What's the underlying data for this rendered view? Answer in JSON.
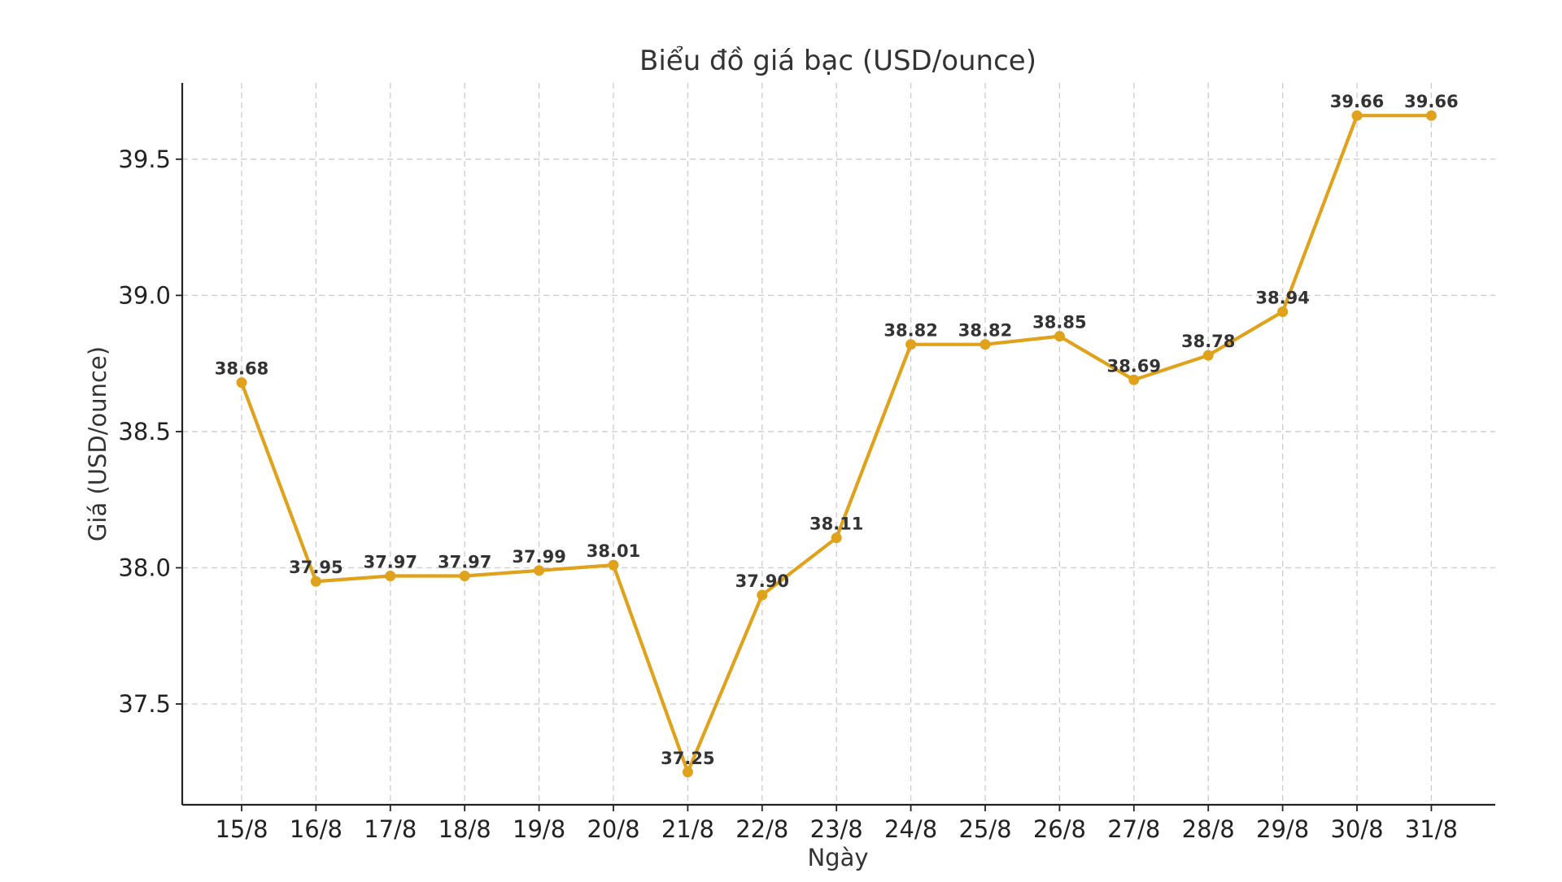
{
  "chart_data": {
    "type": "line",
    "title": "Biểu đồ giá bạc (USD/ounce)",
    "xlabel": "Ngày",
    "ylabel": "Giá (USD/ounce)",
    "categories": [
      "15/8",
      "16/8",
      "17/8",
      "18/8",
      "19/8",
      "20/8",
      "21/8",
      "22/8",
      "23/8",
      "24/8",
      "25/8",
      "26/8",
      "27/8",
      "28/8",
      "29/8",
      "30/8",
      "31/8"
    ],
    "series": [
      {
        "values": [
          38.68,
          37.95,
          37.97,
          37.97,
          37.99,
          38.01,
          37.25,
          37.9,
          38.11,
          38.82,
          38.82,
          38.85,
          38.69,
          38.78,
          38.94,
          39.66,
          39.66
        ],
        "data_labels": [
          "38.68",
          "37.95",
          "37.97",
          "37.97",
          "37.99",
          "38.01",
          "37.25",
          "37.90",
          "38.11",
          "38.82",
          "38.82",
          "38.85",
          "38.69",
          "38.78",
          "38.94",
          "39.66",
          "39.66"
        ],
        "color": "#E0A11B"
      }
    ],
    "ylim": [
      37.13,
      39.78
    ],
    "yticks": [
      37.5,
      38.0,
      38.5,
      39.0,
      39.5
    ],
    "ytick_labels": [
      "37.5",
      "38.0",
      "38.5",
      "39.0",
      "39.5"
    ],
    "grid": true,
    "legend": "none"
  }
}
